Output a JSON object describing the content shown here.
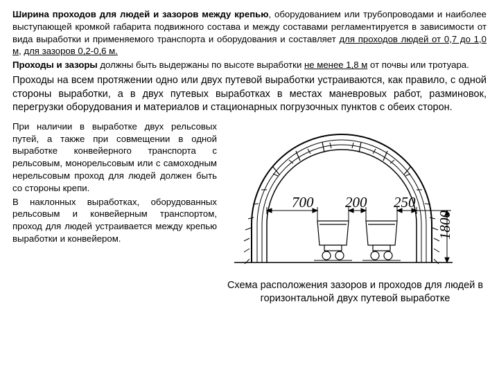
{
  "p1_parts": [
    {
      "t": "Ширина проходов для людей и зазоров между крепью",
      "b": true,
      "u": false
    },
    {
      "t": ", оборудованием или трубопроводами и наиболее выступающей кромкой габарита подвижного состава и между составами регламентируется в зависимости от вида выработки и применяемого транспорта и оборудования и составляет ",
      "b": false,
      "u": false
    },
    {
      "t": "для проходов людей от 0,7 до 1,0 м",
      "b": false,
      "u": true
    },
    {
      "t": ", ",
      "b": false,
      "u": false
    },
    {
      "t": "для зазоров 0,2-0,6 м.",
      "b": false,
      "u": true
    }
  ],
  "p1b_parts": [
    {
      "t": "Проходы и зазоры",
      "b": true,
      "u": false
    },
    {
      "t": " должны быть выдержаны по высоте выработки ",
      "b": false,
      "u": false
    },
    {
      "t": "не менее 1,8 м",
      "b": false,
      "u": true
    },
    {
      "t": " от почвы или тротуара.",
      "b": false,
      "u": false
    }
  ],
  "p2": "Проходы на всем протяжении одно или двух путевой выработки устраиваются, как правило, с одной стороны выработки, а в двух путевых выработках в местах маневровых работ, разминовок, перегрузки оборудования и материалов и стационарных погрузочных пунктов с обеих сторон.",
  "left1": "При наличии в выработке двух рельсовых путей, а также при совмещении в одной выработке конвейерного транспорта с рельсовым, монорельсовым или с самоходным нерельсовым проход для людей должен быть со стороны крепи.",
  "left2": "В наклонных выработках, оборудованных рельсовым и конвейерным транспортом, проход для людей устраивается между крепью выработки и конвейером.",
  "caption": "Схема расположения  зазоров и проходов для людей в горизонтальной двух путевой выработке",
  "diagram": {
    "dim_left": "700",
    "dim_mid": "200",
    "dim_right": "250",
    "dim_h": "1800"
  }
}
